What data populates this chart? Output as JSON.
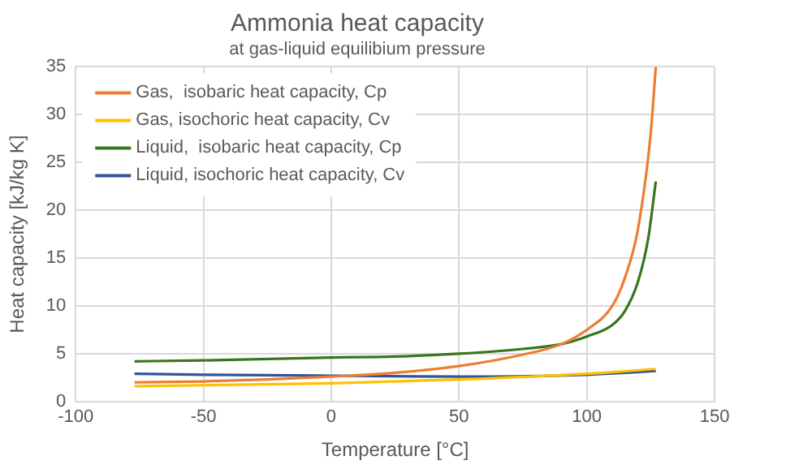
{
  "chart_data": {
    "type": "line",
    "title": "Ammonia heat capacity",
    "subtitle": "at gas-liquid equilibium pressure",
    "xlabel": "Temperature [°C]",
    "ylabel": "Heat capacity [kJ/kg K]",
    "xlim": [
      -100,
      150
    ],
    "xticks": [
      -100,
      -50,
      0,
      50,
      100,
      150
    ],
    "ylim": [
      0,
      35
    ],
    "yticks": [
      0,
      5,
      10,
      15,
      20,
      25,
      30,
      35
    ],
    "grid": true,
    "legend": "top left",
    "marker": "none",
    "line_style": "solid",
    "series": [
      {
        "name": "Gas,  isobaric heat capacity, Cp",
        "color": "#ed7d31",
        "x": [
          -77,
          -50,
          -25,
          0,
          25,
          50,
          75,
          90,
          100,
          110,
          115,
          120,
          125,
          127
        ],
        "values": [
          2.0,
          2.1,
          2.3,
          2.6,
          3.0,
          3.7,
          4.9,
          6.0,
          7.5,
          10,
          13,
          18,
          28,
          35
        ]
      },
      {
        "name": "Gas, isochoric heat capacity, Cv",
        "color": "#ffc000",
        "x": [
          -77,
          -50,
          0,
          50,
          100,
          127
        ],
        "values": [
          1.6,
          1.7,
          1.9,
          2.3,
          2.9,
          3.4
        ]
      },
      {
        "name": "Liquid,  isobaric heat capacity, Cp",
        "color": "#38761d",
        "x": [
          -77,
          -50,
          0,
          25,
          50,
          75,
          90,
          100,
          110,
          115,
          120,
          124,
          127
        ],
        "values": [
          4.2,
          4.3,
          4.6,
          4.7,
          5.0,
          5.5,
          6.0,
          6.8,
          8.0,
          9.5,
          12.5,
          17,
          23
        ]
      },
      {
        "name": "Liquid, isochoric heat capacity, Cv",
        "color": "#2f5597",
        "x": [
          -77,
          -50,
          0,
          50,
          100,
          127
        ],
        "values": [
          2.9,
          2.8,
          2.7,
          2.6,
          2.8,
          3.2
        ]
      }
    ]
  }
}
